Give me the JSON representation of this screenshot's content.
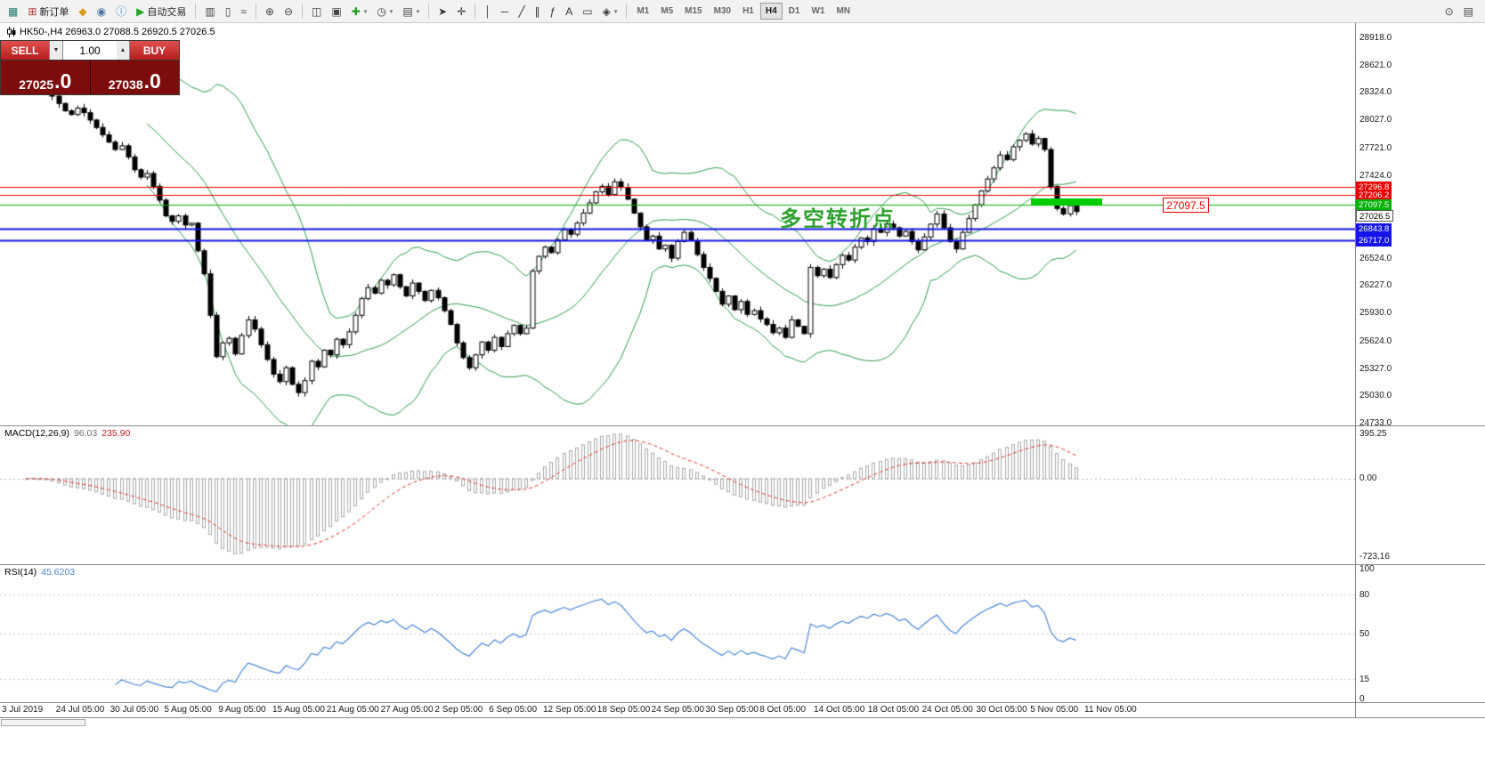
{
  "toolbar": {
    "groups": [
      {
        "items": [
          {
            "name": "new-chart",
            "icon": "▦",
            "color": "#1f7a6e"
          },
          {
            "name": "new-order",
            "icon": "⊞",
            "color": "#b23b3b",
            "label": "新订单"
          },
          {
            "name": "market",
            "icon": "◆",
            "color": "#d99a1f"
          },
          {
            "name": "community",
            "icon": "◉",
            "color": "#4a76a8"
          },
          {
            "name": "info",
            "icon": "ⓘ",
            "color": "#2d8fd5"
          },
          {
            "name": "autotrading",
            "icon": "▶",
            "color": "#28a428",
            "label": "自动交易"
          }
        ]
      },
      {
        "items": [
          {
            "name": "bar-chart",
            "icon": "▥",
            "color": "#444"
          },
          {
            "name": "candle-chart",
            "icon": "▯",
            "color": "#444"
          },
          {
            "name": "line-chart",
            "icon": "≈",
            "color": "#444"
          }
        ]
      },
      {
        "items": [
          {
            "name": "zoom-in",
            "icon": "⊕",
            "color": "#444"
          },
          {
            "name": "zoom-out",
            "icon": "⊖",
            "color": "#444"
          }
        ]
      },
      {
        "items": [
          {
            "name": "tile-windows",
            "icon": "◫",
            "color": "#444"
          },
          {
            "name": "cascade-windows",
            "icon": "▣",
            "color": "#444"
          },
          {
            "name": "indicators",
            "icon": "✚",
            "color": "#1d9e1d",
            "caret": true
          },
          {
            "name": "periods",
            "icon": "◷",
            "color": "#444",
            "caret": true
          },
          {
            "name": "templates",
            "icon": "▤",
            "color": "#444",
            "caret": true
          }
        ]
      },
      {
        "items": [
          {
            "name": "cursor",
            "icon": "➤",
            "color": "#333"
          },
          {
            "name": "crosshair",
            "icon": "✛",
            "color": "#333"
          }
        ]
      },
      {
        "items": [
          {
            "name": "vertical-line",
            "icon": "│",
            "color": "#333"
          },
          {
            "name": "horizontal-line",
            "icon": "─",
            "color": "#333"
          },
          {
            "name": "trendline",
            "icon": "╱",
            "color": "#333"
          },
          {
            "name": "channel",
            "icon": "∥",
            "color": "#333"
          },
          {
            "name": "fibonacci",
            "icon": "ƒ",
            "color": "#333"
          },
          {
            "name": "text",
            "icon": "A",
            "color": "#333"
          },
          {
            "name": "label",
            "icon": "▭",
            "color": "#333"
          },
          {
            "name": "shapes",
            "icon": "◈",
            "color": "#333",
            "caret": true
          }
        ]
      }
    ],
    "timeframes": [
      "M1",
      "M5",
      "M15",
      "M30",
      "H1",
      "H4",
      "D1",
      "W1",
      "MN"
    ],
    "active_timeframe": "H4",
    "right_items": [
      {
        "name": "search",
        "icon": "⊙",
        "color": "#444"
      },
      {
        "name": "data-window",
        "icon": "▤",
        "color": "#444"
      }
    ]
  },
  "symbol_bar": {
    "text": "HK50-,H4 26963.0 27088.5 26920.5 27026.5"
  },
  "trade_panel": {
    "sell_label": "SELL",
    "buy_label": "BUY",
    "volume": "1.00",
    "sell_price": "27025",
    "sell_price_big": ".0",
    "buy_price": "27038",
    "buy_price_big": ".0"
  },
  "chart_data": {
    "type": "candlestick",
    "symbol": "HK50-",
    "timeframe": "H4",
    "bollinger_color": "#2e9b4e",
    "closes": [
      28450,
      28480,
      28400,
      28350,
      28280,
      28200,
      28120,
      28080,
      28150,
      28100,
      28020,
      27940,
      27860,
      27780,
      27700,
      27740,
      27620,
      27480,
      27400,
      27440,
      27300,
      27150,
      26980,
      26920,
      26980,
      26880,
      26900,
      26600,
      26350,
      25900,
      25450,
      25600,
      25650,
      25480,
      25680,
      25850,
      25750,
      25580,
      25420,
      25260,
      25180,
      25330,
      25150,
      25060,
      25190,
      25400,
      25340,
      25520,
      25470,
      25640,
      25580,
      25720,
      25900,
      26080,
      26200,
      26140,
      26280,
      26230,
      26340,
      26210,
      26110,
      26250,
      26160,
      26060,
      26170,
      26090,
      25950,
      25800,
      25600,
      25440,
      25330,
      25470,
      25610,
      25520,
      25660,
      25560,
      25700,
      25790,
      25700,
      25760,
      26380,
      26540,
      26640,
      26580,
      26720,
      26830,
      26780,
      26900,
      27010,
      27120,
      27240,
      27300,
      27210,
      27350,
      27290,
      27160,
      27010,
      26860,
      26720,
      26760,
      26620,
      26660,
      26520,
      26700,
      26800,
      26710,
      26560,
      26420,
      26300,
      26160,
      26020,
      26110,
      25960,
      26050,
      25910,
      25950,
      25860,
      25800,
      25710,
      25760,
      25660,
      25850,
      25780,
      25700,
      26420,
      26330,
      26400,
      26310,
      26450,
      26550,
      26500,
      26640,
      26740,
      26700,
      26840,
      26800,
      26890,
      26850,
      26760,
      26810,
      26700,
      26610,
      26750,
      26890,
      27000,
      26850,
      26700,
      26620,
      26800,
      26950,
      27100,
      27250,
      27380,
      27500,
      27640,
      27590,
      27730,
      27800,
      27870,
      27760,
      27820,
      27700,
      27300,
      27060,
      27000,
      27090,
      27026.5
    ],
    "price_axis": {
      "ticks": [
        28918.0,
        28621.0,
        28324.0,
        28027.0,
        27721.0,
        27424.0,
        26524.0,
        26227.0,
        25930.0,
        25624.0,
        25327.0,
        25030.0,
        24733.0
      ]
    },
    "hlines": [
      {
        "value": 27296.8,
        "color": "#e80000",
        "width": 1
      },
      {
        "value": 27206.2,
        "color": "#e80000",
        "width": 1
      },
      {
        "value": 27097.5,
        "color": "#00b300",
        "width": 1
      },
      {
        "value": 26843.8,
        "color": "#1414e8",
        "width": 2
      },
      {
        "value": 26717.0,
        "color": "#1414e8",
        "width": 2
      }
    ],
    "current_price": 27026.5,
    "annotation": {
      "text": "多空转折点",
      "color": "#2fa12f"
    },
    "price_label_box": "27097.5",
    "highlight": {
      "value": 27097.5,
      "color": "#00cc00"
    },
    "macd": {
      "name": "MACD(12,26,9)",
      "value_main": "96.03",
      "value_signal": "235.90",
      "axis": [
        "395.25",
        "0.00",
        "-723.16"
      ],
      "histogram_color": "#a8a8a8",
      "signal_color": "#e03232"
    },
    "rsi": {
      "name": "RSI(14)",
      "value": "45.6203",
      "axis": [
        100,
        80,
        50,
        15,
        0
      ],
      "levels": [
        80,
        50,
        15
      ],
      "line_color": "#4a86d8"
    },
    "time_axis": {
      "labels": [
        "3 Jul 2019",
        "24 Jul 05:00",
        "30 Jul 05:00",
        "5 Aug 05:00",
        "9 Aug 05:00",
        "15 Aug 05:00",
        "21 Aug 05:00",
        "27 Aug 05:00",
        "2 Sep 05:00",
        "6 Sep 05:00",
        "12 Sep 05:00",
        "18 Sep 05:00",
        "24 Sep 05:00",
        "30 Sep 05:00",
        "8 Oct 05:00",
        "14 Oct 05:00",
        "18 Oct 05:00",
        "24 Oct 05:00",
        "30 Oct 05:00",
        "5 Nov 05:00",
        "11 Nov 05:00"
      ]
    }
  }
}
